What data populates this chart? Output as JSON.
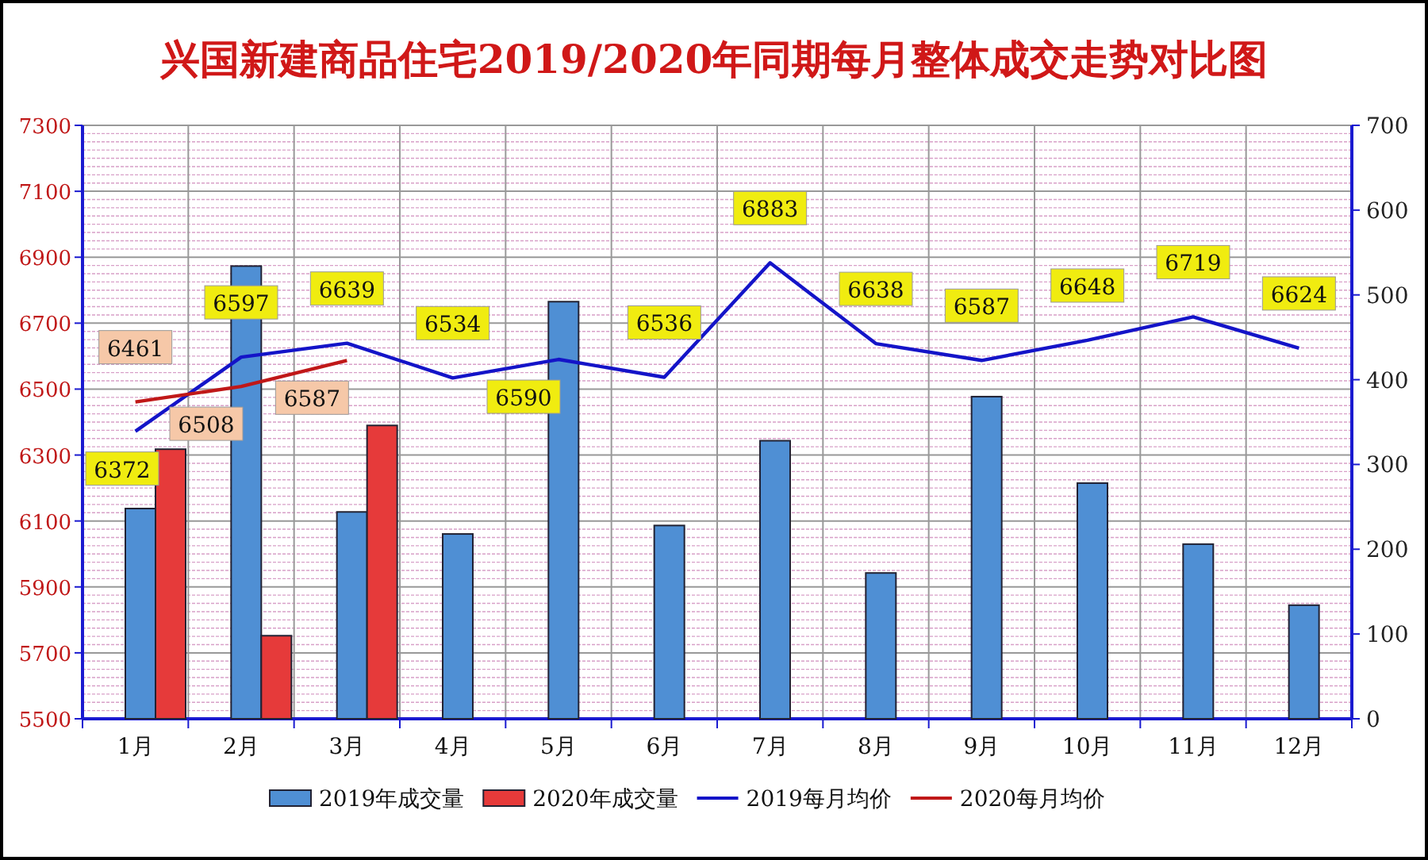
{
  "chart_data": {
    "type": "bar",
    "title": "兴国新建商品住宅2019/2020年同期每月整体成交走势对比图",
    "categories": [
      "1月",
      "2月",
      "3月",
      "4月",
      "5月",
      "6月",
      "7月",
      "8月",
      "9月",
      "10月",
      "11月",
      "12月"
    ],
    "series": [
      {
        "name": "2019年成交量",
        "axis": "y2",
        "color": "#4f8fd4",
        "values": [
          248,
          534,
          244,
          218,
          492,
          228,
          328,
          172,
          380,
          278,
          206,
          134
        ]
      },
      {
        "name": "2020年成交量",
        "axis": "y2",
        "color": "#e63a3a",
        "values": [
          318,
          98,
          346,
          null,
          null,
          null,
          null,
          null,
          null,
          null,
          null,
          null
        ]
      },
      {
        "name": "2019每月均价",
        "type": "line",
        "color": "#1414c8",
        "values": [
          6372,
          6597,
          6639,
          6534,
          6590,
          6536,
          6883,
          6638,
          6587,
          6648,
          6719,
          6624
        ],
        "value_labels": [
          "6372",
          "6597",
          "6639",
          "6534",
          "6590",
          "6536",
          "6883",
          "6638",
          "6587",
          "6648",
          "6719",
          "6624"
        ]
      },
      {
        "name": "2020每月均价",
        "type": "line",
        "color": "#c01818",
        "values": [
          6461,
          6508,
          6587,
          null,
          null,
          null,
          null,
          null,
          null,
          null,
          null,
          null
        ],
        "value_labels": [
          "6461",
          "6508",
          "6587",
          null,
          null,
          null,
          null,
          null,
          null,
          null,
          null,
          null
        ]
      }
    ],
    "ylim": [
      5500,
      7300
    ],
    "yticks": [
      5500,
      5700,
      5900,
      6100,
      6300,
      6500,
      6700,
      6900,
      7100,
      7300
    ],
    "y2lim": [
      0,
      700
    ],
    "y2ticks": [
      0,
      100,
      200,
      300,
      400,
      500,
      600,
      700
    ],
    "grid": true,
    "legend": "bottom",
    "marker": "none"
  }
}
